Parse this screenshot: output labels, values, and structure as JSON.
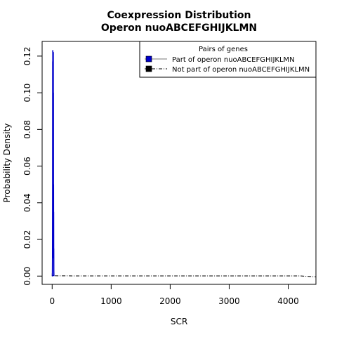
{
  "chart_data": {
    "type": "line",
    "title": "Coexpression Distribution",
    "subtitle": "Operon nuoABCEFGHIJKLMN",
    "xlabel": "SCR",
    "ylabel": "Probability Density",
    "xlim": [
      -170,
      4470
    ],
    "ylim": [
      -0.0045,
      0.128
    ],
    "x_ticks": [
      0,
      1000,
      2000,
      3000,
      4000
    ],
    "x_tick_labels": [
      "0",
      "1000",
      "2000",
      "3000",
      "4000"
    ],
    "y_ticks": [
      0.0,
      0.02,
      0.04,
      0.06,
      0.08,
      0.1,
      0.12
    ],
    "y_tick_labels": [
      "0.00",
      "0.02",
      "0.04",
      "0.06",
      "0.08",
      "0.10",
      "0.12"
    ],
    "grid": false,
    "legend": {
      "title": "Pairs of genes",
      "placement": "top-right"
    },
    "series": [
      {
        "name": "Part of operon nuoABCEFGHIJKLMN",
        "color": "#0000cc",
        "line_color": "#777777",
        "line_style": "solid",
        "x": [
          2,
          4,
          6,
          8,
          9,
          10,
          11,
          12,
          13,
          14,
          15,
          16,
          17,
          18,
          19,
          20,
          21,
          22,
          23,
          24,
          25,
          26,
          27,
          28,
          30
        ],
        "y": [
          0.0,
          0.0,
          0.01,
          0.05,
          0.117,
          0.01,
          0.123,
          0.02,
          0.115,
          0.03,
          0.12,
          0.01,
          0.118,
          0.05,
          0.122,
          0.035,
          0.1,
          0.01,
          0.05,
          0.023,
          0.035,
          0.01,
          0.015,
          0.003,
          0.0
        ]
      },
      {
        "name": "Not part of operon nuoABCEFGHIJKLMN",
        "color": "#000000",
        "line_color": "#000000",
        "line_style": "dotdash",
        "x": [
          0,
          1,
          2,
          3,
          4,
          5,
          6,
          8,
          10,
          20,
          50,
          100,
          500,
          1000,
          2000,
          3000,
          4000,
          4200,
          4470
        ],
        "y": [
          0.0,
          0.0015,
          0.0012,
          0.001,
          0.0009,
          0.0008,
          0.0006,
          0.0005,
          0.0004,
          0.0003,
          0.0002,
          0.00015,
          0.0001,
          0.0001,
          0.0001,
          0.0001,
          0.0001,
          0.0001,
          -0.0004
        ]
      }
    ]
  }
}
